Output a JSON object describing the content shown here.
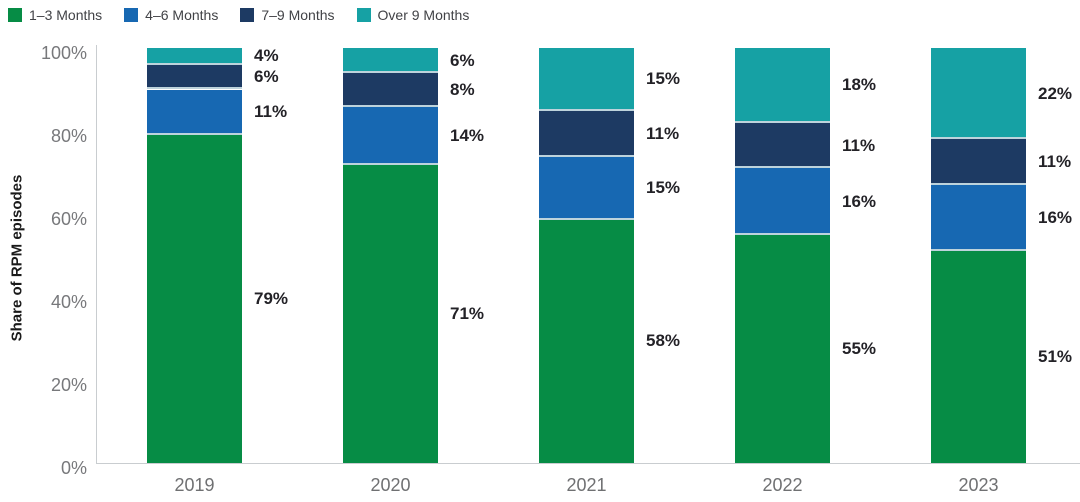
{
  "chart_data": {
    "type": "bar",
    "stacked": true,
    "title": "",
    "xlabel": "",
    "ylabel": "Share of RPM episodes",
    "categories": [
      "2019",
      "2020",
      "2021",
      "2022",
      "2023"
    ],
    "series": [
      {
        "name": "1–3 Months",
        "color": "#068c45",
        "values": [
          79,
          71,
          58,
          55,
          51
        ],
        "labels": [
          "79%",
          "71%",
          "58%",
          "55%",
          "51%"
        ]
      },
      {
        "name": "4–6 Months",
        "color": "#1768b2",
        "values": [
          11,
          14,
          15,
          16,
          16
        ],
        "labels": [
          "11%",
          "14%",
          "15%",
          "16%",
          "16%"
        ]
      },
      {
        "name": "7–9 Months",
        "color": "#1d3a63",
        "values": [
          6,
          8,
          11,
          11,
          11
        ],
        "labels": [
          "6%",
          "8%",
          "11%",
          "11%",
          "11%"
        ]
      },
      {
        "name": "Over 9 Months",
        "color": "#16a1a4",
        "values": [
          4,
          6,
          15,
          18,
          22
        ],
        "labels": [
          "4%",
          "6%",
          "15%",
          "18%",
          "22%"
        ]
      }
    ],
    "ylim": [
      0,
      100
    ],
    "y_ticks": [
      {
        "value": 0,
        "label": "0%"
      },
      {
        "value": 20,
        "label": "20%"
      },
      {
        "value": 40,
        "label": "40%"
      },
      {
        "value": 60,
        "label": "60%"
      },
      {
        "value": 80,
        "label": "80%"
      },
      {
        "value": 100,
        "label": "100%"
      }
    ],
    "grid": false,
    "legend_position": "top-left",
    "data_labels_position": "right-of-bar",
    "separator_color": "#bdd3dc",
    "axis_line_color": "#c9cdd0"
  }
}
